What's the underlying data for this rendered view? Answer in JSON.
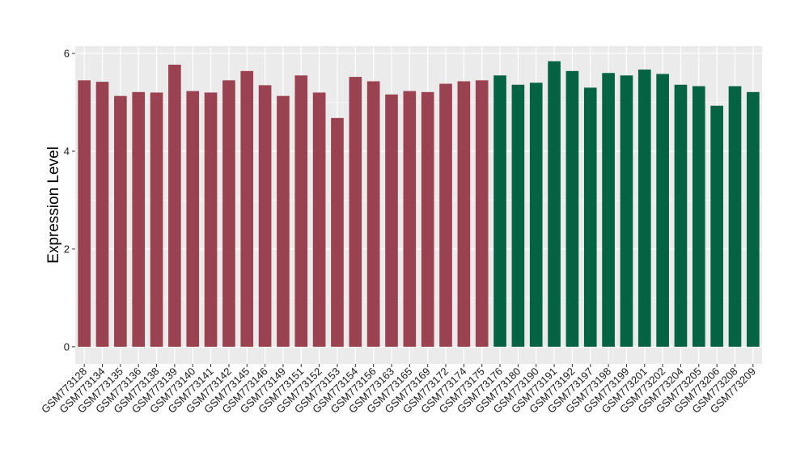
{
  "chart_data": {
    "type": "bar",
    "ylabel": "Expression Level",
    "xlabel": "",
    "ylim": [
      -0.35,
      6.15
    ],
    "yticks": [
      0,
      2,
      4,
      6
    ],
    "grid": true,
    "legend": "none",
    "colors": {
      "panel": "#ebebeb",
      "grid": "#ffffff",
      "group_a": "#9b4250",
      "group_b": "#036342"
    },
    "categories": [
      "GSM773128",
      "GSM773134",
      "GSM773135",
      "GSM773136",
      "GSM773138",
      "GSM773139",
      "GSM773140",
      "GSM773141",
      "GSM773142",
      "GSM773145",
      "GSM773146",
      "GSM773149",
      "GSM773151",
      "GSM773152",
      "GSM773153",
      "GSM773154",
      "GSM773156",
      "GSM773163",
      "GSM773165",
      "GSM773169",
      "GSM773172",
      "GSM773174",
      "GSM773175",
      "GSM773176",
      "GSM773180",
      "GSM773190",
      "GSM773191",
      "GSM773192",
      "GSM773197",
      "GSM773198",
      "GSM773199",
      "GSM773201",
      "GSM773202",
      "GSM773204",
      "GSM773205",
      "GSM773206",
      "GSM773208",
      "GSM773209"
    ],
    "values": [
      5.45,
      5.42,
      5.13,
      5.21,
      5.2,
      5.77,
      5.23,
      5.2,
      5.45,
      5.64,
      5.35,
      5.13,
      5.55,
      5.2,
      4.68,
      5.52,
      5.43,
      5.16,
      5.23,
      5.21,
      5.38,
      5.43,
      5.45,
      5.55,
      5.36,
      5.4,
      5.84,
      5.64,
      5.3,
      5.6,
      5.55,
      5.67,
      5.58,
      5.36,
      5.33,
      4.93,
      5.33,
      5.21
    ],
    "groups": [
      "a",
      "a",
      "a",
      "a",
      "a",
      "a",
      "a",
      "a",
      "a",
      "a",
      "a",
      "a",
      "a",
      "a",
      "a",
      "a",
      "a",
      "a",
      "a",
      "a",
      "a",
      "a",
      "a",
      "b",
      "b",
      "b",
      "b",
      "b",
      "b",
      "b",
      "b",
      "b",
      "b",
      "b",
      "b",
      "b",
      "b",
      "b"
    ]
  }
}
